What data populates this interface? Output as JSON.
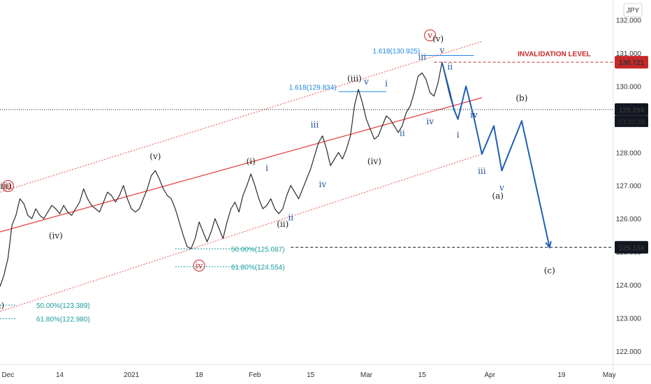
{
  "chart_data": {
    "type": "line",
    "title": "",
    "currency": "JPY",
    "x_range": [
      "2020-11-29",
      "2021-05-02"
    ],
    "y_range": [
      121.6,
      132.6
    ],
    "grid": false,
    "x_ticks": [
      {
        "label": "Dec",
        "date": "2020-12-01"
      },
      {
        "label": "14",
        "date": "2020-12-14"
      },
      {
        "label": "2021",
        "date": "2021-01-01"
      },
      {
        "label": "18",
        "date": "2021-01-18"
      },
      {
        "label": "Feb",
        "date": "2021-02-01"
      },
      {
        "label": "15",
        "date": "2021-02-15"
      },
      {
        "label": "Mar",
        "date": "2021-03-01"
      },
      {
        "label": "15",
        "date": "2021-03-15"
      },
      {
        "label": "Apr",
        "date": "2021-04-01"
      },
      {
        "label": "19",
        "date": "2021-04-19"
      },
      {
        "label": "May",
        "date": "2021-05-01"
      }
    ],
    "y_ticks": [
      "122.000",
      "123.000",
      "124.000",
      "125.000",
      "126.000",
      "127.000",
      "128.000",
      "129.000",
      "130.000",
      "131.000",
      "132.000"
    ],
    "price_series": {
      "name": "price",
      "points": [
        [
          "2020-11-29",
          123.95
        ],
        [
          "2020-11-30",
          124.3
        ],
        [
          "2020-12-01",
          124.8
        ],
        [
          "2020-12-02",
          125.8
        ],
        [
          "2020-12-03",
          126.1
        ],
        [
          "2020-12-04",
          126.6
        ],
        [
          "2020-12-05",
          126.45
        ],
        [
          "2020-12-06",
          126.1
        ],
        [
          "2020-12-07",
          126.0
        ],
        [
          "2020-12-08",
          126.3
        ],
        [
          "2020-12-09",
          126.1
        ],
        [
          "2020-12-10",
          126.0
        ],
        [
          "2020-12-11",
          126.2
        ],
        [
          "2020-12-12",
          126.4
        ],
        [
          "2020-12-13",
          126.3
        ],
        [
          "2020-12-14",
          126.15
        ],
        [
          "2020-12-15",
          126.4
        ],
        [
          "2020-12-16",
          126.2
        ],
        [
          "2020-12-17",
          126.1
        ],
        [
          "2020-12-18",
          126.3
        ],
        [
          "2020-12-19",
          126.5
        ],
        [
          "2020-12-20",
          126.9
        ],
        [
          "2020-12-21",
          126.6
        ],
        [
          "2020-12-22",
          126.4
        ],
        [
          "2020-12-23",
          126.3
        ],
        [
          "2020-12-24",
          126.2
        ],
        [
          "2020-12-25",
          126.5
        ],
        [
          "2020-12-26",
          126.8
        ],
        [
          "2020-12-27",
          126.7
        ],
        [
          "2020-12-28",
          126.5
        ],
        [
          "2020-12-29",
          126.7
        ],
        [
          "2020-12-30",
          127.0
        ],
        [
          "2020-12-31",
          126.6
        ],
        [
          "2021-01-01",
          126.3
        ],
        [
          "2021-01-02",
          126.2
        ],
        [
          "2021-01-03",
          126.3
        ],
        [
          "2021-01-04",
          126.6
        ],
        [
          "2021-01-05",
          126.9
        ],
        [
          "2021-01-06",
          127.3
        ],
        [
          "2021-01-07",
          127.45
        ],
        [
          "2021-01-08",
          127.2
        ],
        [
          "2021-01-09",
          126.9
        ],
        [
          "2021-01-10",
          126.7
        ],
        [
          "2021-01-11",
          126.6
        ],
        [
          "2021-01-12",
          126.3
        ],
        [
          "2021-01-13",
          125.9
        ],
        [
          "2021-01-14",
          125.5
        ],
        [
          "2021-01-15",
          125.15
        ],
        [
          "2021-01-16",
          125.1
        ],
        [
          "2021-01-17",
          125.4
        ],
        [
          "2021-01-18",
          125.9
        ],
        [
          "2021-01-19",
          125.6
        ],
        [
          "2021-01-20",
          125.3
        ],
        [
          "2021-01-21",
          125.6
        ],
        [
          "2021-01-22",
          126.0
        ],
        [
          "2021-01-23",
          125.7
        ],
        [
          "2021-01-24",
          125.4
        ],
        [
          "2021-01-25",
          125.9
        ],
        [
          "2021-01-26",
          126.3
        ],
        [
          "2021-01-27",
          126.5
        ],
        [
          "2021-01-28",
          126.2
        ],
        [
          "2021-01-29",
          126.7
        ],
        [
          "2021-01-30",
          127.0
        ],
        [
          "2021-01-31",
          127.35
        ],
        [
          "2021-02-01",
          127.0
        ],
        [
          "2021-02-02",
          126.6
        ],
        [
          "2021-02-03",
          126.3
        ],
        [
          "2021-02-04",
          126.4
        ],
        [
          "2021-02-05",
          126.6
        ],
        [
          "2021-02-06",
          126.3
        ],
        [
          "2021-02-07",
          126.15
        ],
        [
          "2021-02-08",
          126.3
        ],
        [
          "2021-02-09",
          126.7
        ],
        [
          "2021-02-10",
          127.0
        ],
        [
          "2021-02-11",
          126.8
        ],
        [
          "2021-02-12",
          126.6
        ],
        [
          "2021-02-13",
          126.9
        ],
        [
          "2021-02-14",
          127.2
        ],
        [
          "2021-02-15",
          127.5
        ],
        [
          "2021-02-16",
          127.9
        ],
        [
          "2021-02-17",
          128.3
        ],
        [
          "2021-02-18",
          128.5
        ],
        [
          "2021-02-19",
          128.1
        ],
        [
          "2021-02-20",
          127.6
        ],
        [
          "2021-02-21",
          127.8
        ],
        [
          "2021-02-22",
          128.0
        ],
        [
          "2021-02-23",
          127.8
        ],
        [
          "2021-02-24",
          128.1
        ],
        [
          "2021-02-25",
          128.5
        ],
        [
          "2021-02-26",
          129.4
        ],
        [
          "2021-02-27",
          129.9
        ],
        [
          "2021-02-28",
          129.5
        ],
        [
          "2021-03-01",
          129.0
        ],
        [
          "2021-03-02",
          128.7
        ],
        [
          "2021-03-03",
          128.4
        ],
        [
          "2021-03-04",
          128.5
        ],
        [
          "2021-03-05",
          128.8
        ],
        [
          "2021-03-06",
          129.1
        ],
        [
          "2021-03-07",
          129.0
        ],
        [
          "2021-03-08",
          128.8
        ],
        [
          "2021-03-09",
          128.6
        ],
        [
          "2021-03-10",
          128.8
        ],
        [
          "2021-03-11",
          129.2
        ],
        [
          "2021-03-12",
          129.4
        ],
        [
          "2021-03-13",
          129.8
        ],
        [
          "2021-03-14",
          130.3
        ],
        [
          "2021-03-15",
          130.4
        ],
        [
          "2021-03-16",
          130.2
        ],
        [
          "2021-03-17",
          129.8
        ],
        [
          "2021-03-18",
          129.7
        ],
        [
          "2021-03-19",
          130.1
        ],
        [
          "2021-03-20",
          130.721
        ],
        [
          "2021-03-21",
          130.2
        ],
        [
          "2021-03-22",
          129.7
        ],
        [
          "2021-03-23",
          129.294
        ]
      ]
    },
    "channel": {
      "mid_line": [
        [
          "2020-11-29",
          125.6
        ],
        [
          "2021-03-30",
          129.65
        ]
      ],
      "upper_line": [
        [
          "2020-11-29",
          126.8
        ],
        [
          "2021-03-30",
          131.35
        ]
      ],
      "lower_line": [
        [
          "2020-11-29",
          123.2
        ],
        [
          "2021-03-30",
          127.95
        ]
      ]
    },
    "projection": {
      "name": "projection",
      "points": [
        [
          "2021-03-20",
          130.721
        ],
        [
          "2021-03-22",
          129.8
        ],
        [
          "2021-03-23",
          129.3
        ],
        [
          "2021-03-24",
          129.0
        ],
        [
          "2021-03-26",
          130.0
        ],
        [
          "2021-03-28",
          129.05
        ],
        [
          "2021-03-30",
          127.95
        ],
        [
          "2021-04-02",
          128.8
        ],
        [
          "2021-04-04",
          127.45
        ],
        [
          "2021-04-09",
          128.95
        ],
        [
          "2021-04-16",
          125.134
        ]
      ]
    },
    "price_levels": [
      {
        "label": "130.721",
        "value": 130.721,
        "style": "dashed",
        "color": "#c62828",
        "note": "INVALIDATION LEVEL"
      },
      {
        "label": "129.294",
        "value": 129.294,
        "style": "dotted",
        "color": "#131722",
        "timer": "03:32:48"
      },
      {
        "label": "125.134",
        "value": 125.134,
        "style": "dashed",
        "color": "#131722"
      }
    ],
    "fib_levels": [
      {
        "label": "1.618(130.925)",
        "value": 130.925,
        "from": "2021-03-15",
        "to": "2021-03-28",
        "color": "#1e88e5"
      },
      {
        "label": "1.618(129.834)",
        "value": 129.834,
        "from": "2021-02-22",
        "to": "2021-03-06",
        "color": "#1e88e5"
      },
      {
        "label": "50.00%(125.087)",
        "value": 125.087,
        "from": "2021-01-12",
        "to": "2021-02-01",
        "color": "#1a9c9c"
      },
      {
        "label": "61.80%(124.554)",
        "value": 124.554,
        "from": "2021-01-12",
        "to": "2021-01-29",
        "color": "#1a9c9c"
      },
      {
        "label": "50.00%(123.389)",
        "value": 123.389,
        "from": "2020-11-20",
        "to": "2020-12-03",
        "color": "#1a9c9c"
      },
      {
        "label": "61.80%(122.980)",
        "value": 122.98,
        "from": "2020-11-20",
        "to": "2020-12-03",
        "color": "#1a9c9c"
      }
    ],
    "wave_labels": [
      {
        "text": "(iii)",
        "date": "2020-11-30",
        "value": 126.9,
        "color": "black"
      },
      {
        "text": "(iv)",
        "date": "2020-12-13",
        "value": 125.4,
        "color": "black"
      },
      {
        "text": "(v)",
        "date": "2021-01-07",
        "value": 127.8,
        "color": "black"
      },
      {
        "text": "(i)",
        "date": "2021-01-31",
        "value": 127.65,
        "color": "black"
      },
      {
        "text": "(ii)",
        "date": "2021-02-08",
        "value": 125.75,
        "color": "black"
      },
      {
        "text": "(iii)",
        "date": "2021-02-26",
        "value": 130.15,
        "color": "black"
      },
      {
        "text": "(iv)",
        "date": "2021-03-03",
        "value": 127.65,
        "color": "black"
      },
      {
        "text": "(v)",
        "date": "2021-03-19",
        "value": 131.35,
        "color": "black"
      },
      {
        "text": "ii)",
        "date": "2020-11-29",
        "value": 123.3,
        "color": "black"
      },
      {
        "text": "(a)",
        "date": "2021-04-03",
        "value": 126.6,
        "color": "black"
      },
      {
        "text": "(b)",
        "date": "2021-04-09",
        "value": 129.55,
        "color": "black"
      },
      {
        "text": "(c)",
        "date": "2021-04-16",
        "value": 124.35,
        "color": "black"
      },
      {
        "text": "iii",
        "date": "2020-12-01",
        "value": 126.9,
        "color": "red",
        "circled": true
      },
      {
        "text": "iv",
        "date": "2021-01-18",
        "value": 124.5,
        "color": "red",
        "circled": true
      },
      {
        "text": "v",
        "date": "2021-03-17",
        "value": 131.45,
        "color": "red",
        "circled": true
      },
      {
        "text": "i",
        "date": "2021-02-04",
        "value": 127.45,
        "color": "blue"
      },
      {
        "text": "ii",
        "date": "2021-02-10",
        "value": 125.95,
        "color": "blue"
      },
      {
        "text": "iii",
        "date": "2021-02-16",
        "value": 128.75,
        "color": "blue"
      },
      {
        "text": "iv",
        "date": "2021-02-18",
        "value": 126.95,
        "color": "blue"
      },
      {
        "text": "v",
        "date": "2021-03-01",
        "value": 130.05,
        "color": "blue"
      },
      {
        "text": "i",
        "date": "2021-03-06",
        "value": 130.0,
        "color": "blue"
      },
      {
        "text": "ii",
        "date": "2021-03-10",
        "value": 128.5,
        "color": "blue"
      },
      {
        "text": "iii",
        "date": "2021-03-15",
        "value": 130.8,
        "color": "blue"
      },
      {
        "text": "iv",
        "date": "2021-03-17",
        "value": 128.85,
        "color": "blue"
      },
      {
        "text": "v",
        "date": "2021-03-20",
        "value": 131.0,
        "color": "blue"
      },
      {
        "text": "ii",
        "date": "2021-03-22",
        "value": 130.5,
        "color": "blue"
      },
      {
        "text": "i",
        "date": "2021-03-24",
        "value": 128.45,
        "color": "blue"
      },
      {
        "text": "iv",
        "date": "2021-03-28",
        "value": 129.05,
        "color": "blue"
      },
      {
        "text": "iii",
        "date": "2021-03-30",
        "value": 127.35,
        "color": "blue"
      },
      {
        "text": "v",
        "date": "2021-04-04",
        "value": 126.85,
        "color": "blue"
      }
    ],
    "annotations": [
      {
        "text": "INVALIDATION LEVEL",
        "date": "2021-04-08",
        "value": 130.9,
        "color": "#c62828"
      }
    ],
    "colors": {
      "price": "#2a2a2a",
      "projection": "#1f5fb5",
      "channel_mid": "#e53935",
      "channel_outer": "#ef5350",
      "axis_text": "#333333"
    }
  }
}
